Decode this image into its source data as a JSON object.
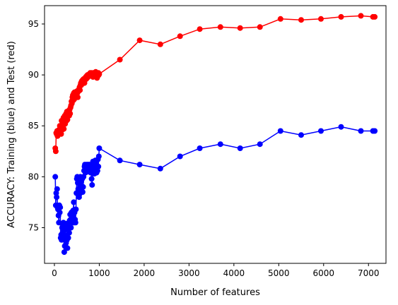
{
  "chart_data": {
    "type": "line",
    "xlabel": "Number of features",
    "ylabel": "ACCURACY: Training (blue) and Test (red)",
    "xlim": [
      -220,
      7390
    ],
    "ylim": [
      71.5,
      96.8
    ],
    "xticks": [
      0,
      1000,
      2000,
      3000,
      4000,
      5000,
      6000,
      7000
    ],
    "yticks": [
      75,
      80,
      85,
      90,
      95
    ],
    "grid": false,
    "series": [
      {
        "color": "#0000ff",
        "x": [
          20,
          30,
          40,
          50,
          60,
          70,
          80,
          90,
          100,
          110,
          120,
          130,
          140,
          150,
          160,
          170,
          180,
          190,
          200,
          210,
          220,
          230,
          240,
          250,
          260,
          270,
          280,
          290,
          300,
          310,
          320,
          330,
          340,
          350,
          360,
          370,
          380,
          390,
          400,
          410,
          420,
          430,
          440,
          450,
          460,
          470,
          480,
          490,
          500,
          510,
          520,
          530,
          540,
          550,
          560,
          570,
          580,
          590,
          600,
          610,
          620,
          630,
          640,
          650,
          660,
          670,
          680,
          690,
          700,
          710,
          720,
          730,
          740,
          750,
          760,
          770,
          780,
          790,
          800,
          810,
          820,
          830,
          840,
          850,
          860,
          870,
          880,
          890,
          900,
          910,
          920,
          930,
          940,
          950,
          960,
          970,
          980,
          990,
          1000,
          1460,
          1900,
          2360,
          2800,
          3240,
          3700,
          4140,
          4580,
          5040,
          5500,
          5940,
          6390,
          6830,
          7100,
          7140
        ],
        "y": [
          80.0,
          77.2,
          78.4,
          78.0,
          78.8,
          77.0,
          76.8,
          76.2,
          75.5,
          77.2,
          76.5,
          77.0,
          74.0,
          74.3,
          73.8,
          75.0,
          74.5,
          75.2,
          75.5,
          74.0,
          72.6,
          73.2,
          74.8,
          75.4,
          73.5,
          74.2,
          73.8,
          73.0,
          75.0,
          74.0,
          75.5,
          74.5,
          75.7,
          76.3,
          75.8,
          75.0,
          76.5,
          75.6,
          76.2,
          75.5,
          76.7,
          77.5,
          75.5,
          76.5,
          75.8,
          75.5,
          76.8,
          78.4,
          79.8,
          80.0,
          79.4,
          78.8,
          78.4,
          78.0,
          78.3,
          79.2,
          80.0,
          78.8,
          79.5,
          79.1,
          79.8,
          78.5,
          79.0,
          80.0,
          80.6,
          81.0,
          81.2,
          80.4,
          81.0,
          80.8,
          81.2,
          81.0,
          80.5,
          81.2,
          80.8,
          81.0,
          81.2,
          80.6,
          81.0,
          80.4,
          81.2,
          79.8,
          79.2,
          80.8,
          81.5,
          80.5,
          81.0,
          80.3,
          81.2,
          81.6,
          80.8,
          81.2,
          80.4,
          81.0,
          80.6,
          81.7,
          81.0,
          82.0,
          82.8,
          81.6,
          81.2,
          80.8,
          82.0,
          82.8,
          83.2,
          82.8,
          83.2,
          84.5,
          84.1,
          84.5,
          84.9,
          84.5,
          84.5,
          84.5
        ]
      },
      {
        "color": "#ff0000",
        "x": [
          20,
          30,
          40,
          50,
          60,
          70,
          80,
          90,
          100,
          110,
          120,
          130,
          140,
          150,
          160,
          170,
          180,
          190,
          200,
          210,
          220,
          230,
          240,
          250,
          260,
          270,
          280,
          290,
          300,
          310,
          320,
          330,
          340,
          350,
          360,
          370,
          380,
          390,
          400,
          410,
          420,
          430,
          440,
          450,
          460,
          470,
          480,
          490,
          500,
          510,
          520,
          530,
          540,
          550,
          560,
          570,
          580,
          590,
          600,
          610,
          620,
          630,
          640,
          650,
          660,
          670,
          680,
          690,
          700,
          710,
          720,
          730,
          740,
          750,
          760,
          770,
          780,
          790,
          800,
          810,
          820,
          830,
          840,
          850,
          860,
          870,
          880,
          890,
          900,
          910,
          920,
          930,
          940,
          950,
          960,
          970,
          980,
          990,
          1000,
          1460,
          1900,
          2360,
          2800,
          3240,
          3700,
          4140,
          4580,
          5040,
          5500,
          5940,
          6390,
          6830,
          7100,
          7140
        ],
        "y": [
          82.8,
          82.5,
          84.3,
          84.2,
          84.5,
          84.0,
          84.4,
          84.2,
          84.6,
          84.3,
          85.0,
          84.5,
          84.8,
          84.2,
          85.5,
          84.6,
          85.2,
          84.9,
          85.8,
          84.7,
          85.4,
          86.0,
          85.2,
          85.8,
          86.2,
          85.5,
          86.4,
          85.6,
          86.0,
          86.3,
          86.5,
          86.0,
          86.6,
          86.2,
          86.8,
          87.0,
          87.4,
          87.2,
          87.8,
          88.0,
          87.5,
          88.2,
          87.6,
          88.3,
          87.8,
          88.0,
          87.8,
          88.2,
          88.4,
          88.2,
          87.8,
          88.5,
          88.4,
          88.6,
          88.8,
          88.5,
          89.0,
          89.2,
          89.0,
          89.4,
          89.2,
          89.5,
          89.3,
          89.6,
          89.4,
          89.2,
          89.5,
          89.7,
          89.8,
          89.6,
          89.9,
          89.7,
          90.0,
          89.8,
          90.0,
          89.9,
          90.1,
          90.0,
          90.2,
          90.1,
          90.0,
          90.2,
          90.1,
          90.0,
          89.8,
          90.2,
          90.0,
          90.2,
          90.1,
          90.0,
          90.3,
          90.1,
          90.0,
          89.7,
          90.1,
          89.9,
          90.2,
          90.0,
          90.1,
          91.5,
          93.4,
          93.0,
          93.8,
          94.5,
          94.7,
          94.6,
          94.7,
          95.5,
          95.4,
          95.5,
          95.7,
          95.8,
          95.7,
          95.7
        ]
      }
    ]
  }
}
